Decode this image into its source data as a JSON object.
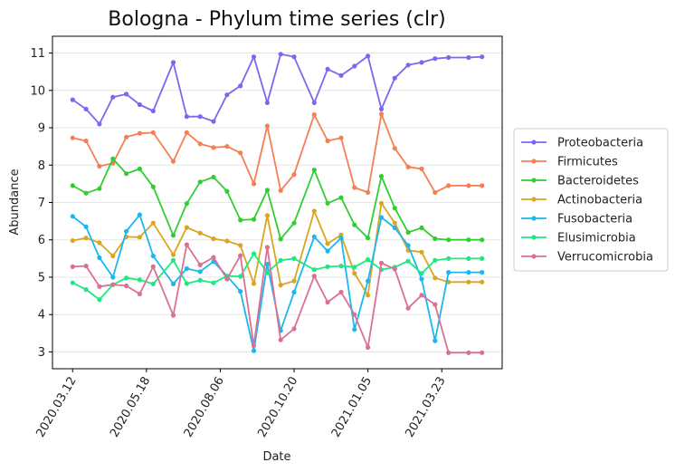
{
  "chart_data": {
    "type": "line",
    "title": "Bologna - Phylum time series (clr)",
    "xlabel": "Date",
    "ylabel": "Abundance",
    "ylim": [
      2.55,
      11.45
    ],
    "x_tick_values": [
      3,
      14,
      25,
      36,
      47,
      58
    ],
    "x_tick_labels": [
      "2020.03.12",
      "2020.05.18",
      "2020.08.06",
      "2020.10.20",
      "2021.01.05",
      "2021.03.23"
    ],
    "y_ticks": [
      3,
      4,
      5,
      6,
      7,
      8,
      9,
      10,
      11
    ],
    "grid": "horizontal",
    "legend_position": "outside right",
    "x": [
      3,
      5,
      7,
      9,
      11,
      13,
      15,
      18,
      20,
      22,
      24,
      26,
      28,
      30,
      32,
      34,
      36,
      39,
      41,
      43,
      45,
      47,
      49,
      51,
      53,
      55,
      57,
      59,
      62,
      64
    ],
    "series": [
      {
        "name": "Proteobacteria",
        "color": "#7b68ee",
        "values": [
          9.75,
          9.5,
          9.1,
          9.82,
          9.9,
          9.62,
          9.45,
          10.75,
          9.3,
          9.3,
          9.17,
          9.88,
          10.12,
          10.9,
          9.67,
          10.97,
          10.9,
          9.67,
          10.57,
          10.4,
          10.65,
          10.92,
          9.5,
          10.33,
          10.68,
          10.75,
          10.85,
          10.88,
          10.88,
          10.9
        ]
      },
      {
        "name": "Firmicutes",
        "color": "#f47f55",
        "values": [
          8.73,
          8.65,
          7.97,
          8.05,
          8.75,
          8.85,
          8.87,
          8.1,
          8.87,
          8.57,
          8.47,
          8.5,
          8.33,
          7.5,
          9.05,
          7.32,
          7.75,
          9.35,
          8.65,
          8.73,
          7.4,
          7.27,
          9.37,
          8.45,
          7.95,
          7.9,
          7.27,
          7.45,
          7.45,
          7.45
        ]
      },
      {
        "name": "Bacteroidetes",
        "color": "#32cd32",
        "values": [
          7.45,
          7.25,
          7.37,
          8.17,
          7.77,
          7.9,
          7.42,
          6.12,
          6.97,
          7.55,
          7.68,
          7.3,
          6.53,
          6.55,
          7.33,
          6.02,
          6.45,
          7.87,
          6.98,
          7.13,
          6.4,
          6.05,
          7.7,
          6.85,
          6.2,
          6.32,
          6.03,
          6.0,
          6.0,
          6.0
        ]
      },
      {
        "name": "Actinobacteria",
        "color": "#daa520",
        "values": [
          5.98,
          6.05,
          5.92,
          5.57,
          6.08,
          6.07,
          6.45,
          5.6,
          6.33,
          6.18,
          6.03,
          5.97,
          5.85,
          4.83,
          6.65,
          4.79,
          4.9,
          6.77,
          5.9,
          6.13,
          5.1,
          4.52,
          6.98,
          6.45,
          5.72,
          5.67,
          4.98,
          4.87,
          4.87,
          4.87
        ]
      },
      {
        "name": "Fusobacteria",
        "color": "#1ab8ee",
        "values": [
          6.63,
          6.35,
          5.52,
          5.0,
          6.23,
          6.67,
          5.57,
          4.82,
          5.23,
          5.15,
          5.42,
          5.03,
          4.62,
          3.03,
          5.35,
          3.57,
          4.6,
          6.08,
          5.7,
          6.05,
          3.6,
          4.9,
          6.6,
          6.32,
          5.85,
          4.95,
          3.3,
          5.13,
          5.13,
          5.13
        ]
      },
      {
        "name": "Elusimicrobia",
        "color": "#1ee880",
        "values": [
          4.85,
          4.67,
          4.4,
          4.8,
          4.98,
          4.93,
          4.82,
          5.45,
          4.83,
          4.92,
          4.85,
          5.03,
          5.02,
          5.63,
          5.12,
          5.45,
          5.5,
          5.2,
          5.28,
          5.3,
          5.27,
          5.47,
          5.2,
          5.27,
          5.43,
          5.1,
          5.45,
          5.5,
          5.5,
          5.5
        ]
      },
      {
        "name": "Verrucomicrobia",
        "color": "#db7093",
        "values": [
          5.28,
          5.3,
          4.75,
          4.8,
          4.77,
          4.55,
          5.28,
          3.98,
          5.87,
          5.33,
          5.53,
          4.95,
          5.58,
          3.17,
          5.8,
          3.32,
          3.62,
          5.03,
          4.33,
          4.6,
          4.0,
          3.12,
          5.38,
          5.22,
          4.17,
          4.52,
          4.27,
          2.98,
          2.98,
          2.98
        ]
      }
    ]
  }
}
